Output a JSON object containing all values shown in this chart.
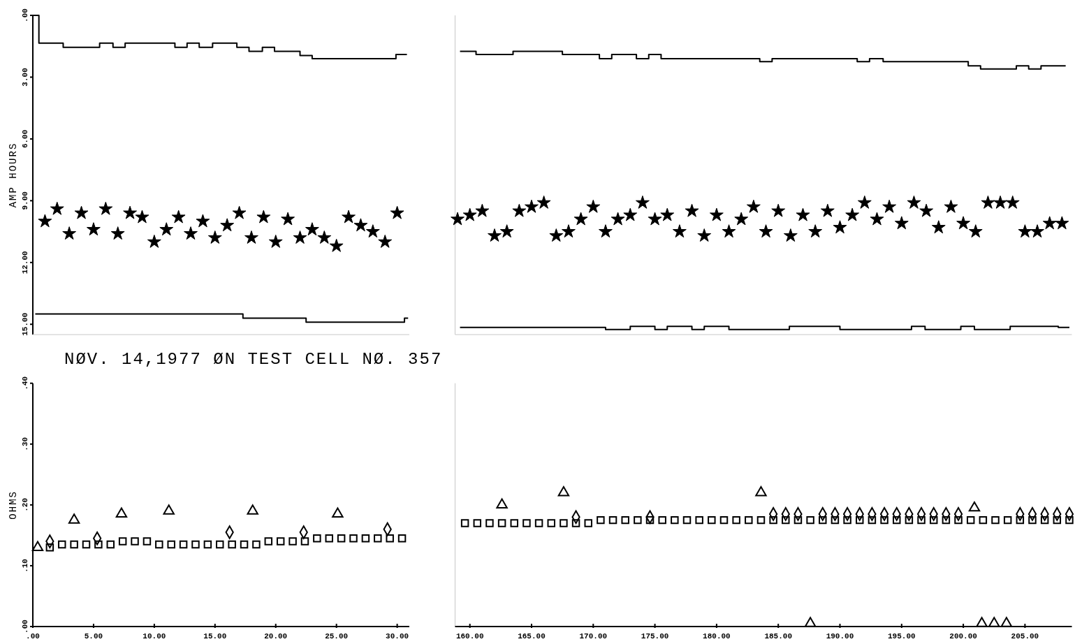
{
  "chart_data": [
    {
      "type": "scatter",
      "ylabel": "AMP HOURS",
      "xlim": [
        0,
        31
      ],
      "ylim": [
        15.5,
        0
      ],
      "tick_labels": "y",
      "yticks": [
        {
          "value": 0,
          "label": ".00"
        },
        {
          "value": 3,
          "label": "3.00"
        },
        {
          "value": 6,
          "label": "6.00"
        },
        {
          "value": 9,
          "label": "9.00"
        },
        {
          "value": 12,
          "label": "12.00"
        },
        {
          "value": 15,
          "label": "15.00"
        }
      ],
      "series": [
        {
          "type": "step",
          "color": "#000000",
          "x": [
            0,
            0.5,
            2.5,
            5.5,
            6.6,
            7.6,
            11.7,
            12.7,
            13.7,
            14.8,
            16.8,
            17.8,
            18.9,
            19.9,
            22.0,
            23.0,
            29.9,
            30.8
          ],
          "values": [
            0,
            1.35,
            1.55,
            1.35,
            1.55,
            1.35,
            1.55,
            1.35,
            1.55,
            1.35,
            1.55,
            1.75,
            1.55,
            1.75,
            1.95,
            2.1,
            1.9,
            1.9
          ]
        },
        {
          "type": "step",
          "color": "#000000",
          "x": [
            0.2,
            17.3,
            22.5,
            30.6,
            30.9
          ],
          "values": [
            14.5,
            14.7,
            14.9,
            14.7,
            14.7
          ]
        },
        {
          "type": "scatter",
          "marker": "star",
          "color": "#000000",
          "x": [
            1,
            2,
            3,
            4,
            5,
            6,
            7,
            8,
            9,
            10,
            11,
            12,
            13,
            14,
            15,
            16,
            17,
            18,
            19,
            20,
            21,
            22,
            23,
            24,
            25,
            26,
            27,
            28,
            29,
            30
          ],
          "values": [
            10.0,
            9.4,
            10.6,
            9.6,
            10.4,
            9.4,
            10.6,
            9.6,
            9.8,
            11.0,
            10.4,
            9.8,
            10.6,
            10.0,
            10.8,
            10.2,
            9.6,
            10.8,
            9.8,
            11.0,
            9.9,
            10.8,
            10.4,
            10.8,
            11.2,
            9.8,
            10.2,
            10.5,
            11.0,
            9.6
          ]
        }
      ]
    },
    {
      "type": "scatter",
      "xlim": [
        158.8,
        208.8
      ],
      "ylim": [
        15.5,
        0
      ],
      "tick_labels": false,
      "series": [
        {
          "type": "step",
          "color": "#000000",
          "x": [
            159.2,
            160.5,
            163.5,
            167.5,
            170.5,
            171.5,
            173.5,
            174.5,
            175.5,
            183.5,
            184.5,
            191.4,
            192.4,
            193.5,
            200.4,
            201.4,
            204.3,
            205.3,
            206.3,
            208.3
          ],
          "values": [
            1.75,
            1.9,
            1.75,
            1.9,
            2.1,
            1.9,
            2.1,
            1.9,
            2.1,
            2.25,
            2.1,
            2.25,
            2.1,
            2.25,
            2.45,
            2.6,
            2.45,
            2.6,
            2.45,
            2.45
          ]
        },
        {
          "type": "step",
          "color": "#000000",
          "x": [
            159.2,
            171,
            173,
            175,
            176,
            178,
            179,
            181,
            185.9,
            190,
            195.8,
            196.9,
            199.8,
            200.9,
            203.8,
            207.7,
            208.6
          ],
          "values": [
            15.15,
            15.25,
            15.1,
            15.25,
            15.1,
            15.25,
            15.1,
            15.25,
            15.1,
            15.25,
            15.1,
            15.25,
            15.1,
            15.25,
            15.1,
            15.15,
            15.15
          ]
        },
        {
          "type": "scatter",
          "marker": "star",
          "color": "#000000",
          "x": [
            159,
            160,
            161,
            162,
            163,
            164,
            165,
            166,
            167,
            168,
            169,
            170,
            171,
            172,
            173,
            174,
            175,
            176,
            177,
            178,
            179,
            180,
            181,
            182,
            183,
            184,
            185,
            186,
            187,
            188,
            189,
            190,
            191,
            192,
            193,
            194,
            195,
            196,
            197,
            198,
            199,
            200,
            201,
            202,
            203,
            204,
            205,
            206,
            207,
            208
          ],
          "values": [
            9.9,
            9.7,
            9.5,
            10.7,
            10.5,
            9.5,
            9.3,
            9.1,
            10.7,
            10.5,
            9.9,
            9.3,
            10.5,
            9.9,
            9.7,
            9.1,
            9.9,
            9.7,
            10.5,
            9.5,
            10.7,
            9.7,
            10.5,
            9.9,
            9.3,
            10.5,
            9.5,
            10.7,
            9.7,
            10.5,
            9.5,
            10.3,
            9.7,
            9.1,
            9.9,
            9.3,
            10.1,
            9.1,
            9.5,
            10.3,
            9.3,
            10.1,
            10.5,
            9.1,
            9.1,
            9.1,
            10.5,
            10.5,
            10.1,
            10.1
          ]
        }
      ]
    },
    {
      "type": "scatter",
      "title": "NØV. 14,1977 ØN TEST CELL NØ. 357",
      "ylabel": "OHMS",
      "xlim": [
        0,
        31
      ],
      "ylim": [
        0,
        0.4
      ],
      "xticks": [
        {
          "value": 0,
          "label": ".00"
        },
        {
          "value": 5,
          "label": "5.00"
        },
        {
          "value": 10,
          "label": "10.00"
        },
        {
          "value": 15,
          "label": "15.00"
        },
        {
          "value": 20,
          "label": "20.00"
        },
        {
          "value": 25,
          "label": "25.00"
        },
        {
          "value": 30,
          "label": "30.00"
        }
      ],
      "yticks": [
        {
          "value": 0,
          "label": ".00"
        },
        {
          "value": 0.1,
          "label": ".10"
        },
        {
          "value": 0.2,
          "label": ".20"
        },
        {
          "value": 0.3,
          "label": ".30"
        },
        {
          "value": 0.4,
          "label": ".40"
        }
      ],
      "series": [
        {
          "type": "scatter",
          "marker": "square",
          "color": "#000000",
          "x": [
            1.4,
            2.4,
            3.4,
            4.4,
            5.4,
            6.4,
            7.4,
            8.4,
            9.4,
            10.4,
            11.4,
            12.4,
            13.4,
            14.4,
            15.4,
            16.4,
            17.4,
            18.4,
            19.4,
            20.4,
            21.4,
            22.4,
            23.4,
            24.4,
            25.4,
            26.4,
            27.4,
            28.4,
            29.4,
            30.4
          ],
          "values": [
            0.13,
            0.135,
            0.135,
            0.135,
            0.135,
            0.135,
            0.14,
            0.14,
            0.14,
            0.135,
            0.135,
            0.135,
            0.135,
            0.135,
            0.135,
            0.135,
            0.135,
            0.135,
            0.14,
            0.14,
            0.14,
            0.14,
            0.145,
            0.145,
            0.145,
            0.145,
            0.145,
            0.145,
            0.145,
            0.145
          ]
        },
        {
          "type": "scatter",
          "marker": "diamond",
          "color": "#000000",
          "x": [
            1.4,
            5.3,
            16.2,
            22.3,
            29.2
          ],
          "values": [
            0.14,
            0.145,
            0.155,
            0.155,
            0.16
          ]
        },
        {
          "type": "scatter",
          "marker": "triangle",
          "color": "#000000",
          "x": [
            0.4,
            3.4,
            7.3,
            11.2,
            18.1,
            25.1
          ],
          "values": [
            0.13,
            0.175,
            0.185,
            0.19,
            0.19,
            0.185
          ]
        }
      ]
    },
    {
      "type": "scatter",
      "xlim": [
        158.8,
        208.8
      ],
      "ylim": [
        0,
        0.4
      ],
      "tick_labels": "x",
      "xticks": [
        {
          "value": 160,
          "label": "160.00"
        },
        {
          "value": 165,
          "label": "165.00"
        },
        {
          "value": 170,
          "label": "170.00"
        },
        {
          "value": 175,
          "label": "175.00"
        },
        {
          "value": 180,
          "label": "180.00"
        },
        {
          "value": 185,
          "label": "185.00"
        },
        {
          "value": 190,
          "label": "190.00"
        },
        {
          "value": 195,
          "label": "195.00"
        },
        {
          "value": 200,
          "label": "200.00"
        },
        {
          "value": 205,
          "label": "205.00"
        }
      ],
      "series": [
        {
          "type": "scatter",
          "marker": "square",
          "color": "#000000",
          "x": [
            159.6,
            160.6,
            161.6,
            162.6,
            163.6,
            164.6,
            165.6,
            166.6,
            167.6,
            168.6,
            169.6,
            170.6,
            171.6,
            172.6,
            173.6,
            174.6,
            175.6,
            176.6,
            177.6,
            178.6,
            179.6,
            180.6,
            181.6,
            182.6,
            183.6,
            184.6,
            185.6,
            186.6,
            187.6,
            188.6,
            189.6,
            190.6,
            191.6,
            192.6,
            193.6,
            194.6,
            195.6,
            196.6,
            197.6,
            198.6,
            199.6,
            200.6,
            201.6,
            202.6,
            203.6,
            204.6,
            205.6,
            206.6,
            207.6,
            208.6
          ],
          "values": [
            0.17,
            0.17,
            0.17,
            0.17,
            0.17,
            0.17,
            0.17,
            0.17,
            0.17,
            0.17,
            0.17,
            0.175,
            0.175,
            0.175,
            0.175,
            0.175,
            0.175,
            0.175,
            0.175,
            0.175,
            0.175,
            0.175,
            0.175,
            0.175,
            0.175,
            0.175,
            0.175,
            0.175,
            0.175,
            0.175,
            0.175,
            0.175,
            0.175,
            0.175,
            0.175,
            0.175,
            0.175,
            0.175,
            0.175,
            0.175,
            0.175,
            0.175,
            0.175,
            0.175,
            0.175,
            0.175,
            0.175,
            0.175,
            0.175,
            0.175
          ]
        },
        {
          "type": "scatter",
          "marker": "diamond",
          "color": "#000000",
          "x": [
            168.6,
            174.6,
            184.6,
            185.6,
            186.6,
            188.6,
            189.6,
            190.6,
            191.6,
            192.6,
            193.6,
            194.6,
            195.6,
            196.6,
            197.6,
            198.6,
            199.6,
            204.6,
            205.6,
            206.6,
            207.6,
            208.6
          ],
          "values": [
            0.18,
            0.18,
            0.185,
            0.185,
            0.185,
            0.185,
            0.185,
            0.185,
            0.185,
            0.185,
            0.185,
            0.185,
            0.185,
            0.185,
            0.185,
            0.185,
            0.185,
            0.185,
            0.185,
            0.185,
            0.185,
            0.185
          ]
        },
        {
          "type": "scatter",
          "marker": "triangle",
          "color": "#000000",
          "x": [
            162.6,
            167.6,
            183.6,
            187.6,
            200.9,
            201.5,
            202.5,
            203.5
          ],
          "values": [
            0.2,
            0.22,
            0.22,
            0.005,
            0.195,
            0.005,
            0.005,
            0.005
          ]
        }
      ]
    }
  ]
}
